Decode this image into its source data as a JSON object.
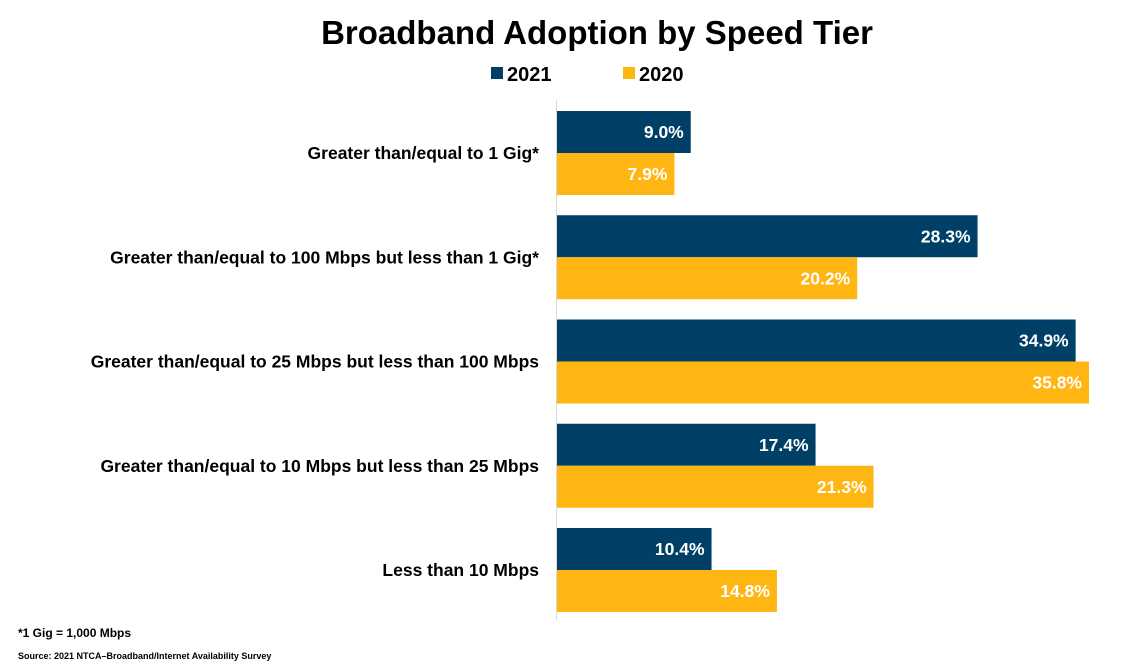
{
  "chart_data": {
    "type": "bar",
    "orientation": "horizontal",
    "title": "Broadband Adoption by Speed Tier",
    "categories": [
      "Greater than/equal to 1 Gig*",
      "Greater than/equal to 100 Mbps but less than 1 Gig*",
      "Greater than/equal to 25 Mbps but less than 100 Mbps",
      "Greater than/equal to 10 Mbps but less than 25 Mbps",
      "Less than 10 Mbps"
    ],
    "series": [
      {
        "name": "2021",
        "color": "#003f66",
        "values": [
          9.0,
          28.3,
          34.9,
          17.4,
          10.4
        ],
        "labels": [
          "9.0%",
          "28.3%",
          "34.9%",
          "17.4%",
          "10.4%"
        ]
      },
      {
        "name": "2020",
        "color": "#ffb612",
        "values": [
          7.9,
          20.2,
          35.8,
          21.3,
          14.8
        ],
        "labels": [
          "7.9%",
          "20.2%",
          "35.8%",
          "21.3%",
          "14.8%"
        ]
      }
    ],
    "value_axis_range": [
      0,
      36.5
    ],
    "grid": false,
    "legend_position": "top-center"
  },
  "footnote": "*1 Gig = 1,000 Mbps",
  "source": "Source: 2021 NTCA–Broadband/Internet Availability Survey"
}
